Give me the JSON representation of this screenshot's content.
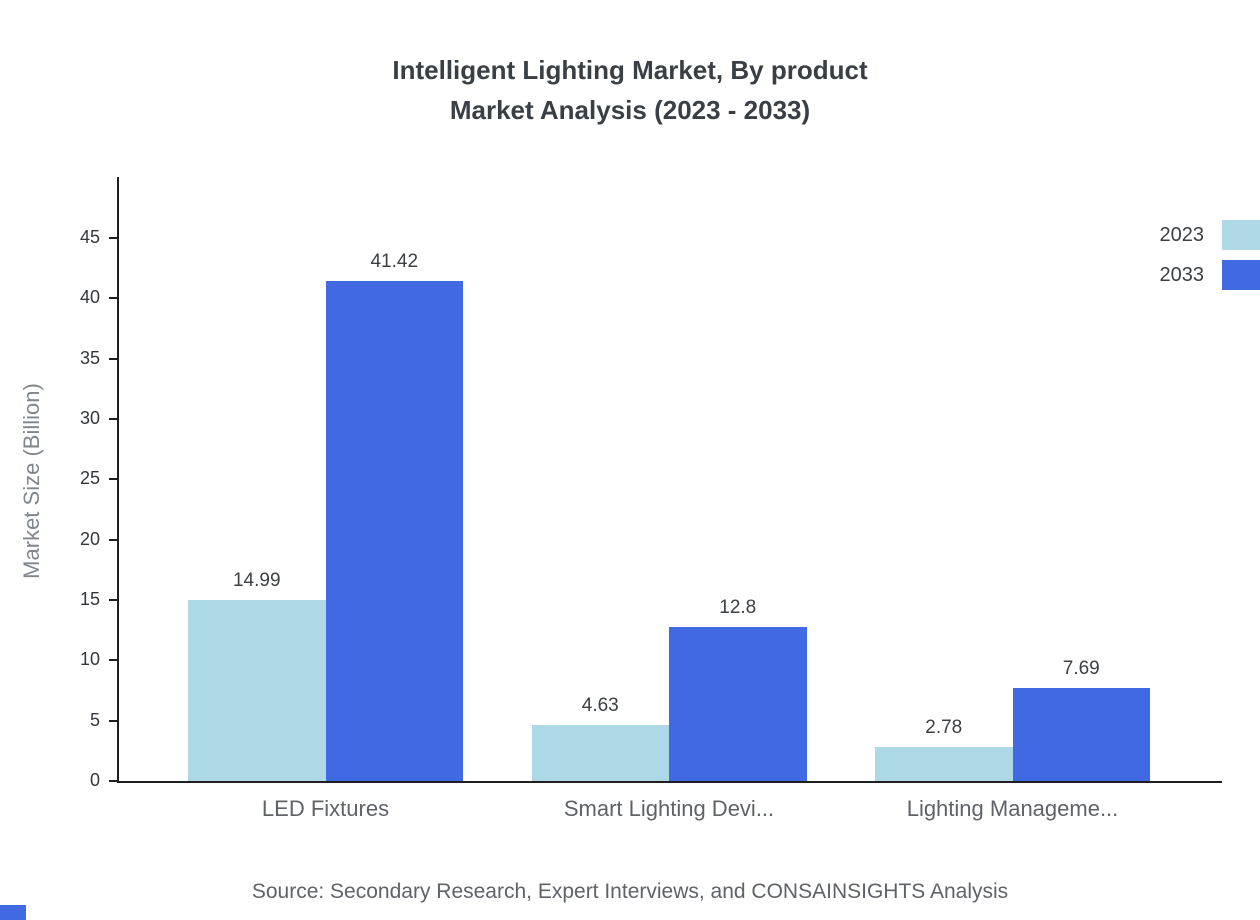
{
  "title": {
    "line1": "Intelligent Lighting Market, By product",
    "line2": "Market Analysis (2023 - 2033)"
  },
  "source": "Source: Secondary Research, Expert Interviews, and CONSAINSIGHTS Analysis",
  "chart_data": {
    "type": "bar",
    "title": "Intelligent Lighting Market, By product — Market Analysis (2023 - 2033)",
    "categories": [
      "LED Fixtures",
      "Smart Lighting Devi...",
      "Lighting Manageme..."
    ],
    "series": [
      {
        "name": "2023",
        "color": "#add8e6",
        "values": [
          14.99,
          4.63,
          2.78
        ]
      },
      {
        "name": "2033",
        "color": "#4169e1",
        "values": [
          41.42,
          12.8,
          7.69
        ]
      }
    ],
    "xlabel": "",
    "ylabel": "Market Size (Billion)",
    "yticks": [
      0,
      5,
      10,
      15,
      20,
      25,
      30,
      35,
      40,
      45
    ],
    "ylim": [
      0,
      50
    ],
    "grid": false,
    "legend_position": "top-right",
    "value_labels": true
  },
  "colors": {
    "series_2023": "#add8e6",
    "series_2033": "#4169e1",
    "title_text": "#3a3f45",
    "axis": "#1f1f1f",
    "muted_text": "#5f6368"
  }
}
